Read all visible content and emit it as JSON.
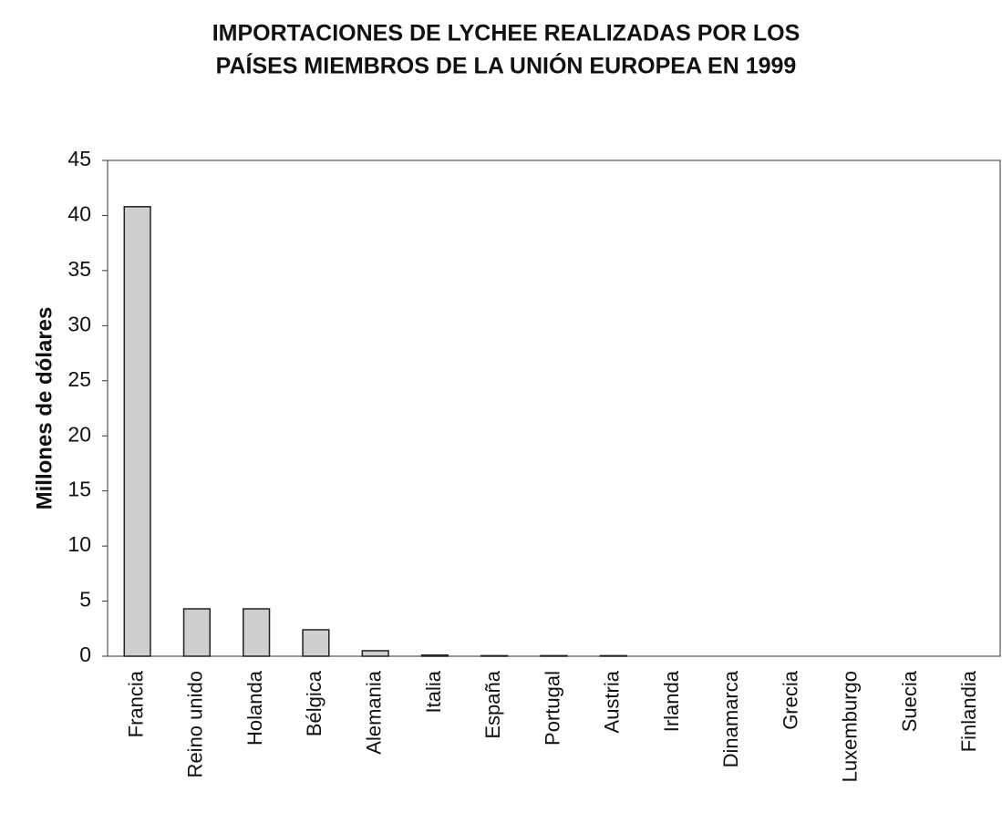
{
  "chart_data": {
    "type": "bar",
    "title": [
      "IMPORTACIONES DE LYCHEE REALIZADAS POR LOS",
      "PAÍSES MIEMBROS DE LA UNIÓN EUROPEA EN 1999"
    ],
    "y_label": "Millones de dólares",
    "categories": [
      "Francia",
      "Reino unido",
      "Holanda",
      "Bélgica",
      "Alemania",
      "Italia",
      "España",
      "Portugal",
      "Austria",
      "Irlanda",
      "Dinamarca",
      "Grecia",
      "Luxemburgo",
      "Suecia",
      "Finlandia"
    ],
    "values": [
      40.8,
      4.3,
      4.3,
      2.4,
      0.5,
      0.1,
      0.05,
      0.05,
      0.05,
      0,
      0,
      0,
      0,
      0,
      0
    ],
    "color": "#cfcfcf",
    "ylim": [
      0,
      45
    ],
    "yticks": [
      0,
      5,
      10,
      15,
      20,
      25,
      30,
      35,
      40,
      45
    ],
    "grid": false
  }
}
